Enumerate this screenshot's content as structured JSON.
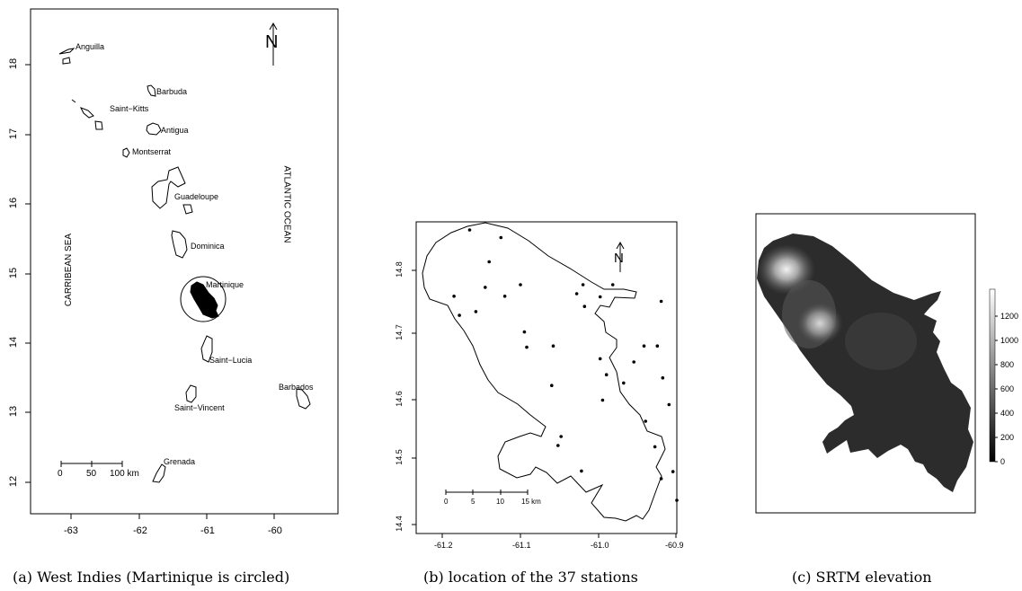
{
  "panel_a": {
    "caption": "(a) West Indies (Martinique is circled)",
    "x_ticks": [
      "-63",
      "-62",
      "-61",
      "-60"
    ],
    "y_ticks": [
      "12",
      "13",
      "14",
      "15",
      "16",
      "17",
      "18"
    ],
    "sea_label": "CARRIBEAN SEA",
    "ocean_label": "ATLANTIC OCEAN",
    "north_label": "N",
    "scale_labels": [
      "0",
      "50",
      "100 km"
    ],
    "islands": [
      "Anguilla",
      "Barbuda",
      "Saint−Kitts",
      "Antigua",
      "Montserrat",
      "Guadeloupe",
      "Dominica",
      "Martinique",
      "Saint−Lucia",
      "Barbados",
      "Saint−Vincent",
      "Grenada"
    ]
  },
  "panel_b": {
    "caption": "(b) location of the 37 stations",
    "x_ticks": [
      "-61.2",
      "-61.1",
      "-61.0",
      "-60.9"
    ],
    "y_ticks": [
      "14.4",
      "14.5",
      "14.6",
      "14.7",
      "14.8"
    ],
    "north_label": "N",
    "scale_labels": [
      "0",
      "5",
      "10",
      "15 km"
    ],
    "station_count": 37,
    "stations": [
      [
        -61.165,
        14.862
      ],
      [
        -61.125,
        14.85
      ],
      [
        -61.14,
        14.812
      ],
      [
        -61.1,
        14.776
      ],
      [
        -61.185,
        14.758
      ],
      [
        -61.145,
        14.772
      ],
      [
        -61.12,
        14.758
      ],
      [
        -61.178,
        14.728
      ],
      [
        -61.157,
        14.734
      ],
      [
        -61.02,
        14.776
      ],
      [
        -60.998,
        14.757
      ],
      [
        -60.982,
        14.776
      ],
      [
        -61.018,
        14.742
      ],
      [
        -61.028,
        14.762
      ],
      [
        -60.92,
        14.75
      ],
      [
        -61.095,
        14.702
      ],
      [
        -61.092,
        14.678
      ],
      [
        -61.058,
        14.68
      ],
      [
        -60.998,
        14.66
      ],
      [
        -60.955,
        14.655
      ],
      [
        -60.942,
        14.68
      ],
      [
        -60.925,
        14.68
      ],
      [
        -60.99,
        14.635
      ],
      [
        -60.968,
        14.622
      ],
      [
        -61.06,
        14.618
      ],
      [
        -60.918,
        14.63
      ],
      [
        -60.995,
        14.595
      ],
      [
        -60.91,
        14.588
      ],
      [
        -60.94,
        14.562
      ],
      [
        -60.878,
        14.552
      ],
      [
        -61.048,
        14.538
      ],
      [
        -61.052,
        14.524
      ],
      [
        -60.928,
        14.522
      ],
      [
        -61.022,
        14.484
      ],
      [
        -60.905,
        14.483
      ],
      [
        -60.92,
        14.472
      ],
      [
        -60.9,
        14.438
      ]
    ]
  },
  "panel_c": {
    "caption": "(c) SRTM elevation",
    "colorbar_ticks": [
      "0",
      "200",
      "400",
      "600",
      "800",
      "1000",
      "1200"
    ],
    "colorbar_range": [
      0,
      1397
    ]
  }
}
